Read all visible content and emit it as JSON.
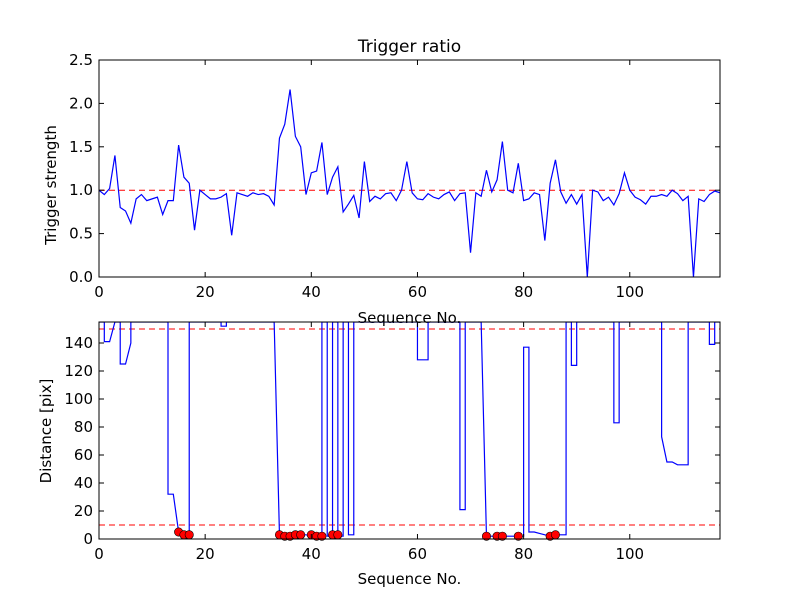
{
  "chart_data": [
    {
      "type": "line",
      "title": "Trigger ratio",
      "xlabel": "Sequence No.",
      "ylabel": "Trigger strength",
      "xlim": [
        0,
        117
      ],
      "ylim": [
        0.0,
        2.5
      ],
      "xticks": [
        0,
        20,
        40,
        60,
        80,
        100
      ],
      "xtick_labels": [
        "0",
        "20",
        "40",
        "60",
        "80",
        "100"
      ],
      "yticks": [
        0.0,
        0.5,
        1.0,
        1.5,
        2.0,
        2.5
      ],
      "ytick_labels": [
        "0.0",
        "0.5",
        "1.0",
        "1.5",
        "2.0",
        "2.5"
      ],
      "grid": false,
      "series": [
        {
          "color": "#0000ff",
          "x": [
            0,
            1,
            2,
            3,
            4,
            5,
            6,
            7,
            8,
            9,
            10,
            11,
            12,
            13,
            14,
            15,
            16,
            17,
            18,
            19,
            20,
            21,
            22,
            23,
            24,
            25,
            26,
            27,
            28,
            29,
            30,
            31,
            32,
            33,
            34,
            35,
            36,
            37,
            38,
            39,
            40,
            41,
            42,
            43,
            44,
            45,
            46,
            47,
            48,
            49,
            50,
            51,
            52,
            53,
            54,
            55,
            56,
            57,
            58,
            59,
            60,
            61,
            62,
            63,
            64,
            65,
            66,
            67,
            68,
            69,
            70,
            71,
            72,
            73,
            74,
            75,
            76,
            77,
            78,
            79,
            80,
            81,
            82,
            83,
            84,
            85,
            86,
            87,
            88,
            89,
            90,
            91,
            92,
            93,
            94,
            95,
            96,
            97,
            98,
            99,
            100,
            101,
            102,
            103,
            104,
            105,
            106,
            107,
            108,
            109,
            110,
            111,
            112,
            113,
            114,
            115,
            116,
            117
          ],
          "y": [
            1.0,
            0.95,
            1.02,
            1.4,
            0.8,
            0.76,
            0.62,
            0.9,
            0.95,
            0.88,
            0.9,
            0.92,
            0.72,
            0.88,
            0.88,
            1.52,
            1.15,
            1.08,
            0.54,
            1.0,
            0.95,
            0.9,
            0.9,
            0.92,
            0.96,
            0.48,
            0.97,
            0.95,
            0.93,
            0.97,
            0.95,
            0.96,
            0.93,
            0.83,
            1.6,
            1.76,
            2.16,
            1.62,
            1.5,
            0.95,
            1.2,
            1.22,
            1.55,
            0.95,
            1.15,
            1.27,
            0.75,
            0.84,
            0.94,
            0.68,
            1.33,
            0.87,
            0.93,
            0.9,
            0.96,
            0.97,
            0.88,
            1.0,
            1.33,
            0.97,
            0.9,
            0.89,
            0.96,
            0.92,
            0.9,
            0.95,
            0.98,
            0.88,
            0.96,
            0.97,
            0.28,
            0.97,
            0.93,
            1.23,
            0.98,
            1.12,
            1.56,
            1.0,
            0.97,
            1.31,
            0.88,
            0.9,
            0.97,
            0.95,
            0.42,
            1.08,
            1.35,
            0.98,
            0.85,
            0.95,
            0.84,
            0.95,
            0.0,
            1.0,
            0.98,
            0.88,
            0.92,
            0.83,
            0.96,
            1.2,
            1.0,
            0.92,
            0.89,
            0.84,
            0.93,
            0.93,
            0.95,
            0.93,
            1.0,
            0.96,
            0.88,
            0.93,
            0.0,
            0.9,
            0.87,
            0.95,
            0.99,
            0.97
          ]
        }
      ],
      "reference_lines": [
        {
          "y": 1.0,
          "color": "#ff0000",
          "style": "dashed"
        }
      ]
    },
    {
      "type": "line",
      "title": "",
      "xlabel": "Sequence No.",
      "ylabel": "Distance [pix]",
      "xlim": [
        0,
        117
      ],
      "ylim": [
        0,
        155
      ],
      "xticks": [
        0,
        20,
        40,
        60,
        80,
        100
      ],
      "xtick_labels": [
        "0",
        "20",
        "40",
        "60",
        "80",
        "100"
      ],
      "yticks": [
        0,
        20,
        40,
        60,
        80,
        100,
        120,
        140
      ],
      "ytick_labels": [
        "0",
        "20",
        "40",
        "60",
        "80",
        "100",
        "120",
        "140"
      ],
      "grid": false,
      "series": [
        {
          "color": "#0000ff",
          "x": [
            0,
            1,
            1,
            2,
            3,
            3,
            4,
            4,
            5,
            6,
            6,
            7,
            12,
            13,
            13,
            14,
            15,
            16,
            17,
            17,
            18,
            23,
            23,
            24,
            24,
            33,
            34,
            35,
            36,
            37,
            38,
            39,
            40,
            41,
            42,
            42,
            43,
            43,
            44,
            44,
            45,
            45,
            46,
            46,
            47,
            47,
            48,
            48,
            60,
            60,
            61,
            62,
            62,
            67,
            68,
            68,
            69,
            69,
            70,
            72,
            73,
            74,
            75,
            76,
            77,
            78,
            79,
            80,
            80,
            81,
            81,
            82,
            83,
            84,
            85,
            86,
            87,
            88,
            88,
            89,
            89,
            90,
            90,
            91,
            91,
            97,
            97,
            98,
            98,
            99,
            106,
            106,
            107,
            108,
            109,
            110,
            111,
            111,
            112,
            113,
            114,
            115,
            115,
            116,
            116,
            117
          ],
          "y": [
            155,
            155,
            141,
            141,
            155,
            155,
            155,
            125,
            125,
            140,
            155,
            155,
            155,
            155,
            32,
            32,
            5,
            3,
            3,
            155,
            155,
            155,
            152,
            152,
            155,
            155,
            3,
            2,
            2,
            3,
            3,
            3,
            2,
            2,
            2,
            155,
            155,
            2,
            2,
            155,
            155,
            2,
            2,
            155,
            155,
            3,
            3,
            155,
            155,
            128,
            128,
            128,
            155,
            155,
            155,
            21,
            21,
            155,
            155,
            155,
            2,
            2,
            2,
            2,
            2,
            2,
            2,
            2,
            137,
            137,
            5,
            5,
            4,
            3,
            2,
            3,
            3,
            3,
            155,
            155,
            124,
            124,
            155,
            155,
            155,
            155,
            83,
            83,
            155,
            155,
            155,
            73,
            55,
            55,
            53,
            53,
            53,
            155,
            155,
            155,
            155,
            155,
            139,
            139,
            155,
            155
          ]
        }
      ],
      "points": {
        "color": "#ff0000",
        "x": [
          15,
          16,
          17,
          34,
          35,
          36,
          37,
          38,
          40,
          41,
          42,
          44,
          45,
          73,
          75,
          76,
          79,
          85,
          86
        ],
        "y": [
          5,
          3,
          3,
          3,
          2,
          2,
          3,
          3,
          3,
          2,
          2,
          3,
          3,
          2,
          2,
          2,
          2,
          2,
          3
        ]
      },
      "reference_lines": [
        {
          "y": 150,
          "color": "#ff0000",
          "style": "dashed"
        },
        {
          "y": 10,
          "color": "#ff0000",
          "style": "dashed"
        }
      ]
    }
  ]
}
